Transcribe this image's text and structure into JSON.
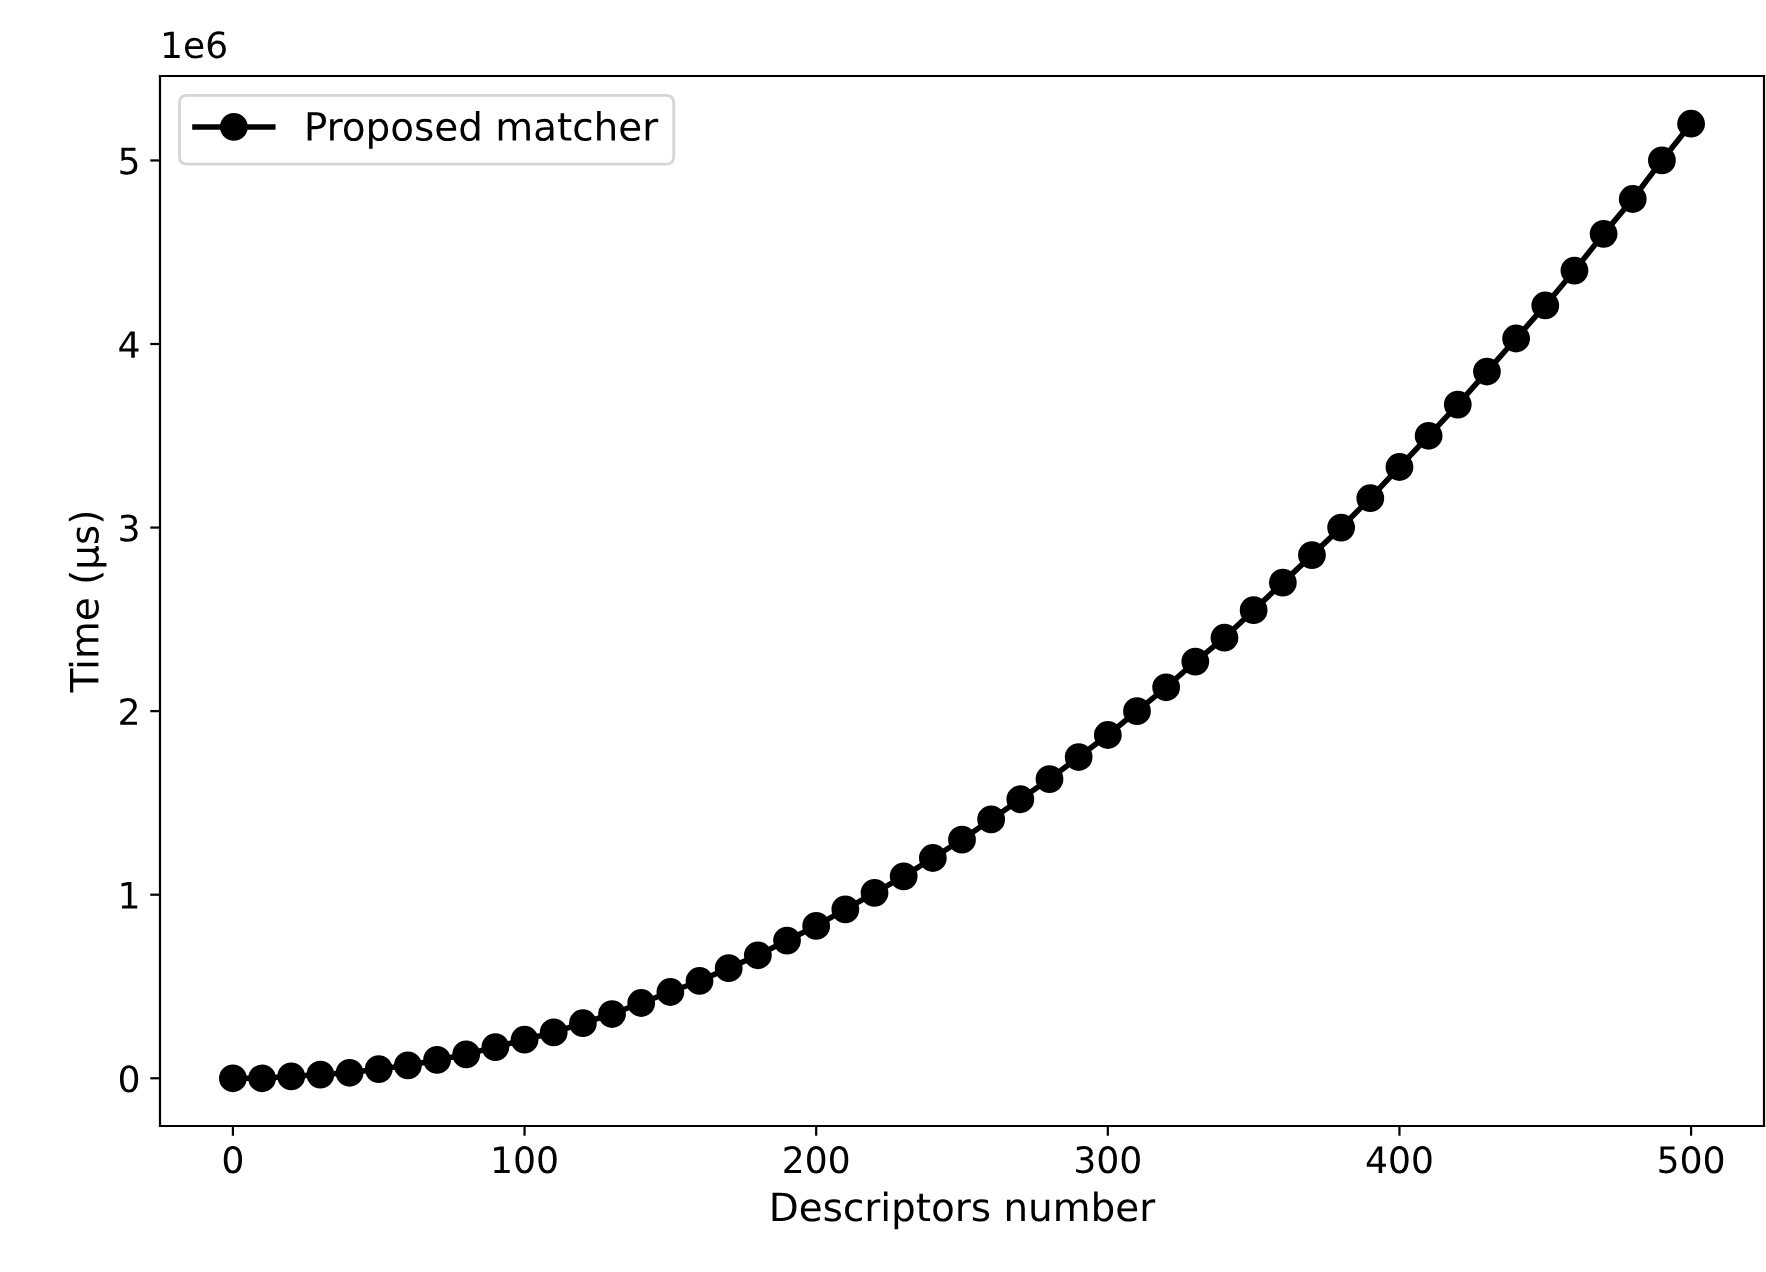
{
  "chart_data": {
    "type": "line",
    "xlabel": "Descriptors number",
    "ylabel": "Time (µs)",
    "x": [
      0,
      10,
      20,
      30,
      40,
      50,
      60,
      70,
      80,
      90,
      100,
      110,
      120,
      130,
      140,
      150,
      160,
      170,
      180,
      190,
      200,
      210,
      220,
      230,
      240,
      250,
      260,
      270,
      280,
      290,
      300,
      310,
      320,
      330,
      340,
      350,
      360,
      370,
      380,
      390,
      400,
      410,
      420,
      430,
      440,
      450,
      460,
      470,
      480,
      490,
      500
    ],
    "series": [
      {
        "name": "Proposed matcher",
        "color": "#000000",
        "values": [
          0,
          0,
          0.01,
          0.02,
          0.03,
          0.05,
          0.07,
          0.1,
          0.13,
          0.17,
          0.21,
          0.25,
          0.3,
          0.35,
          0.41,
          0.47,
          0.53,
          0.6,
          0.67,
          0.75,
          0.83,
          0.92,
          1.01,
          1.1,
          1.2,
          1.3,
          1.41,
          1.52,
          1.63,
          1.75,
          1.87,
          2.0,
          2.13,
          2.27,
          2.4,
          2.55,
          2.7,
          2.85,
          3.0,
          3.16,
          3.33,
          3.5,
          3.67,
          3.85,
          4.03,
          4.21,
          4.4,
          4.6,
          4.79,
          5.0,
          5.2
        ]
      }
    ],
    "xlim": [
      -25,
      525
    ],
    "xticks": [
      0,
      100,
      200,
      300,
      400,
      500
    ],
    "ylim": [
      -0.26,
      5.46
    ],
    "yticks": [
      0,
      1,
      2,
      3,
      4,
      5
    ],
    "annotations": [
      "1e6"
    ],
    "marker": "circle",
    "line_style": "solid",
    "legend": "top left",
    "grid": false
  }
}
